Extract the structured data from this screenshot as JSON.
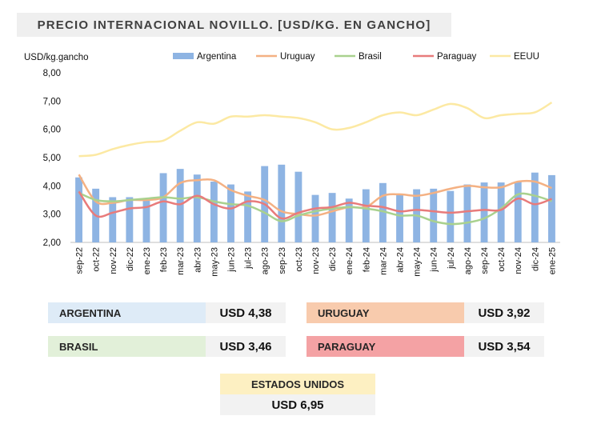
{
  "title": "PRECIO INTERNACIONAL NOVILLO. [USD/KG. EN GANCHO]",
  "chart_data": {
    "type": "bar",
    "ylabel": "USD/kg.gancho",
    "ylim": [
      2,
      8
    ],
    "yticks": [
      "2,00",
      "3,00",
      "4,00",
      "5,00",
      "6,00",
      "7,00",
      "8,00"
    ],
    "legend_position": "top",
    "categories": [
      "sep-22",
      "oct-22",
      "nov-22",
      "dic-22",
      "ene-23",
      "feb-23",
      "mar-23",
      "abr-23",
      "may-23",
      "jun-23",
      "jul-23",
      "ago-23",
      "sep-23",
      "oct-23",
      "nov-23",
      "dic-23",
      "ene-24",
      "feb-24",
      "mar-24",
      "abr-24",
      "may-24",
      "jun-24",
      "jul-24",
      "ago-24",
      "sep-24",
      "oct-24",
      "nov-24",
      "dic-24",
      "ene-25"
    ],
    "series": [
      {
        "name": "Argentina",
        "type": "bar",
        "color": "#8eb4e3",
        "values": [
          4.3,
          3.9,
          3.6,
          3.6,
          3.55,
          4.45,
          4.6,
          4.4,
          4.15,
          4.05,
          3.8,
          4.7,
          4.75,
          4.5,
          3.68,
          3.75,
          3.55,
          3.88,
          4.1,
          3.68,
          3.88,
          3.9,
          3.82,
          4.05,
          4.12,
          4.12,
          4.15,
          4.47,
          4.38
        ]
      },
      {
        "name": "Uruguay",
        "type": "line",
        "color": "#f4b183",
        "values": [
          4.4,
          3.45,
          3.4,
          3.5,
          3.5,
          3.6,
          4.1,
          4.2,
          4.2,
          3.85,
          3.65,
          3.5,
          3.1,
          3.0,
          2.95,
          3.1,
          3.25,
          3.25,
          3.65,
          3.7,
          3.65,
          3.75,
          3.9,
          4.0,
          3.95,
          3.95,
          4.15,
          4.15,
          3.92
        ]
      },
      {
        "name": "Brasil",
        "type": "line",
        "color": "#a9d18e",
        "values": [
          3.75,
          3.5,
          3.45,
          3.5,
          3.55,
          3.6,
          3.55,
          3.6,
          3.45,
          3.35,
          3.3,
          3.05,
          2.75,
          2.95,
          3.1,
          3.2,
          3.25,
          3.2,
          3.1,
          2.95,
          2.95,
          2.75,
          2.65,
          2.7,
          2.85,
          3.2,
          3.7,
          3.65,
          3.46
        ]
      },
      {
        "name": "Paraguay",
        "type": "line",
        "color": "#e87b7b",
        "values": [
          3.8,
          2.95,
          3.05,
          3.2,
          3.25,
          3.45,
          3.35,
          3.65,
          3.35,
          3.2,
          3.45,
          3.35,
          2.85,
          3.05,
          3.2,
          3.25,
          3.4,
          3.3,
          3.25,
          3.1,
          3.15,
          3.1,
          3.05,
          3.1,
          3.15,
          3.15,
          3.55,
          3.35,
          3.54
        ]
      },
      {
        "name": "EEUU",
        "type": "line",
        "color": "#fce9a3",
        "values": [
          5.05,
          5.1,
          5.3,
          5.45,
          5.55,
          5.6,
          5.95,
          6.25,
          6.2,
          6.45,
          6.45,
          6.5,
          6.45,
          6.4,
          6.25,
          6.0,
          6.05,
          6.25,
          6.5,
          6.6,
          6.5,
          6.7,
          6.9,
          6.75,
          6.4,
          6.5,
          6.55,
          6.6,
          6.95
        ]
      }
    ]
  },
  "summary": {
    "argentina": {
      "label": "ARGENTINA",
      "value": "USD 4,38",
      "color": "#deebf7"
    },
    "uruguay": {
      "label": "URUGUAY",
      "value": "USD 3,92",
      "color": "#f8cbad"
    },
    "brasil": {
      "label": "BRASIL",
      "value": "USD 3,46",
      "color": "#e2f0d9"
    },
    "paraguay": {
      "label": "PARAGUAY",
      "value": "USD 3,54",
      "color": "#f4a2a4"
    },
    "eeuu": {
      "label": "ESTADOS UNIDOS",
      "value": "USD 6,95",
      "color": "#fdf0c2"
    }
  }
}
